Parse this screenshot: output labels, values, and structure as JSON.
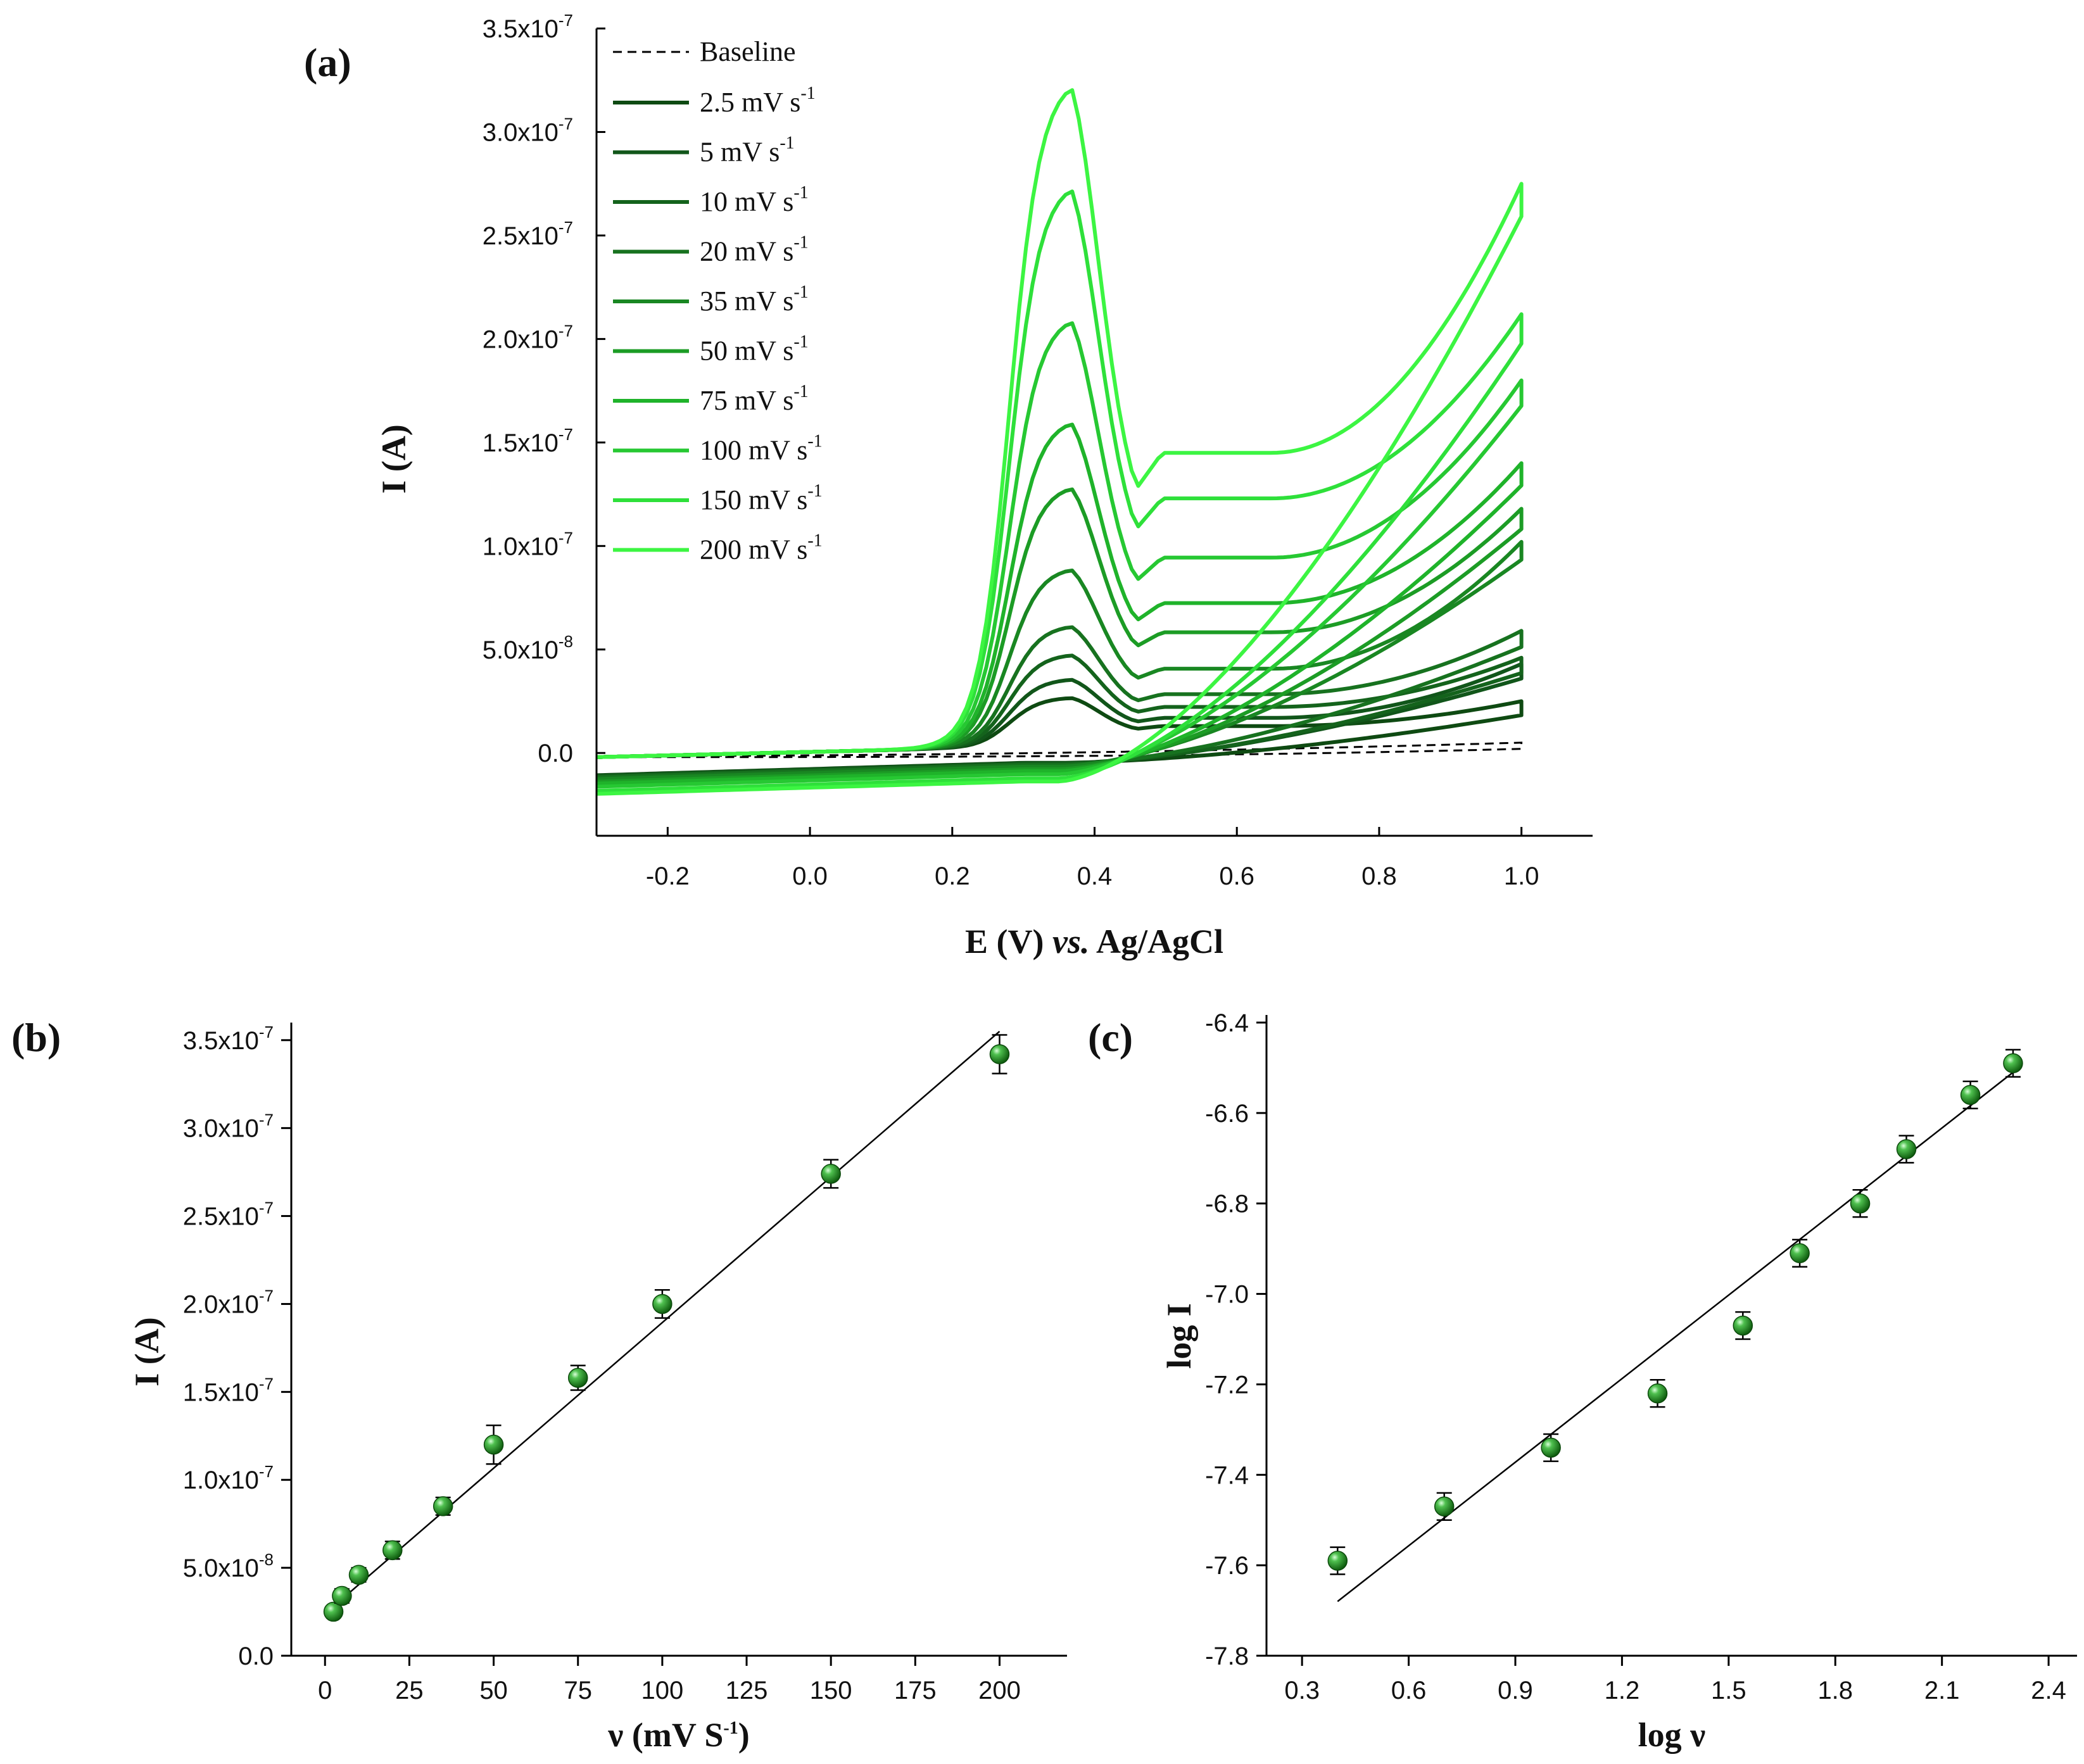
{
  "chart_data": [
    {
      "panel": "(a)",
      "type": "line",
      "xlabel_parts": [
        "E (V) ",
        "vs.",
        " Ag/AgCl"
      ],
      "ylabel": "I (A)",
      "xlim": [
        -0.3,
        1.1
      ],
      "ylim": [
        -4e-08,
        3.5e-07
      ],
      "x_ticks": [
        -0.2,
        0.0,
        0.2,
        0.4,
        0.6,
        0.8,
        1.0
      ],
      "x_tick_labels": [
        "-0.2",
        "0.0",
        "0.2",
        "0.4",
        "0.6",
        "0.8",
        "1.0"
      ],
      "y_ticks": [
        0,
        5e-08,
        1e-07,
        1.5e-07,
        2e-07,
        2.5e-07,
        3e-07,
        3.5e-07
      ],
      "y_tick_labels": [
        {
          "mant": "0.0",
          "exp": ""
        },
        {
          "mant": "5.0x10",
          "exp": "-8"
        },
        {
          "mant": "1.0x10",
          "exp": "-7"
        },
        {
          "mant": "1.5x10",
          "exp": "-7"
        },
        {
          "mant": "2.0x10",
          "exp": "-7"
        },
        {
          "mant": "2.5x10",
          "exp": "-7"
        },
        {
          "mant": "3.0x10",
          "exp": "-7"
        },
        {
          "mant": "3.5x10",
          "exp": "-7"
        }
      ],
      "baseline": {
        "name": "Baseline",
        "peak": 0,
        "end_current": 5e-09,
        "color": "#000000"
      },
      "series": [
        {
          "label": "2.5 mV s",
          "sup": "-1",
          "peak": 2.5e-08,
          "end_current": 2.3e-08,
          "color": "#0e4a12"
        },
        {
          "label": "5 mV s",
          "sup": "-1",
          "peak": 3.4e-08,
          "end_current": 4.1e-08,
          "color": "#11561a"
        },
        {
          "label": "10 mV s",
          "sup": "-1",
          "peak": 4.6e-08,
          "end_current": 4.4e-08,
          "color": "#14631c"
        },
        {
          "label": "20 mV s",
          "sup": "-1",
          "peak": 6e-08,
          "end_current": 5.7e-08,
          "color": "#17721f"
        },
        {
          "label": "35 mV s",
          "sup": "-1",
          "peak": 8.8e-08,
          "end_current": 1e-07,
          "color": "#198722"
        },
        {
          "label": "50 mV s",
          "sup": "-1",
          "peak": 1.28e-07,
          "end_current": 1.16e-07,
          "color": "#1c9c25"
        },
        {
          "label": "75 mV s",
          "sup": "-1",
          "peak": 1.6e-07,
          "end_current": 1.38e-07,
          "color": "#1fb32a"
        },
        {
          "label": "100 mV s",
          "sup": "-1",
          "peak": 2.1e-07,
          "end_current": 1.78e-07,
          "color": "#26c832"
        },
        {
          "label": "150 mV s",
          "sup": "-1",
          "peak": 2.75e-07,
          "end_current": 2.1e-07,
          "color": "#2ee03a"
        },
        {
          "label": "200 mV s",
          "sup": "-1",
          "peak": 3.25e-07,
          "end_current": 2.73e-07,
          "color": "#3cf542"
        }
      ],
      "peak_potential_V": 0.36
    },
    {
      "panel": "(b)",
      "type": "scatter",
      "xlabel": "ν (mV S",
      "xlabel_sup": "-1",
      "xlabel_end": ")",
      "ylabel": "I (A)",
      "xlim": [
        -10,
        220
      ],
      "ylim": [
        0,
        3.6e-07
      ],
      "x_ticks": [
        0,
        25,
        50,
        75,
        100,
        125,
        150,
        175,
        200
      ],
      "x_tick_labels": [
        "0",
        "25",
        "50",
        "75",
        "100",
        "125",
        "150",
        "175",
        "200"
      ],
      "y_ticks": [
        0,
        5e-08,
        1e-07,
        1.5e-07,
        2e-07,
        2.5e-07,
        3e-07,
        3.5e-07
      ],
      "y_tick_labels": [
        {
          "mant": "0.0",
          "exp": ""
        },
        {
          "mant": "5.0x10",
          "exp": "-8"
        },
        {
          "mant": "1.0x10",
          "exp": "-7"
        },
        {
          "mant": "1.5x10",
          "exp": "-7"
        },
        {
          "mant": "2.0x10",
          "exp": "-7"
        },
        {
          "mant": "2.5x10",
          "exp": "-7"
        },
        {
          "mant": "3.0x10",
          "exp": "-7"
        },
        {
          "mant": "3.5x10",
          "exp": "-7"
        }
      ],
      "x": [
        2.5,
        5,
        10,
        20,
        35,
        50,
        75,
        100,
        150,
        200
      ],
      "y": [
        2.5e-08,
        3.4e-08,
        4.6e-08,
        6e-08,
        8.5e-08,
        1.2e-07,
        1.58e-07,
        2e-07,
        2.74e-07,
        3.42e-07
      ],
      "yerr": [
        3e-09,
        4e-09,
        4e-09,
        5e-09,
        5e-09,
        1.1e-08,
        7e-09,
        8e-09,
        8e-09,
        1.1e-08
      ],
      "fit": {
        "x": [
          2.5,
          200
        ],
        "y": [
          2.8e-08,
          3.55e-07
        ]
      },
      "marker_color": "#1e8c1e"
    },
    {
      "panel": "(c)",
      "type": "scatter",
      "xlabel": "log ν",
      "ylabel": "log I",
      "xlim": [
        0.2,
        2.48
      ],
      "ylim": [
        -7.8,
        -6.4
      ],
      "x_ticks": [
        0.3,
        0.6,
        0.9,
        1.2,
        1.5,
        1.8,
        2.1,
        2.4
      ],
      "x_tick_labels": [
        "0.3",
        "0.6",
        "0.9",
        "1.2",
        "1.5",
        "1.8",
        "2.1",
        "2.4"
      ],
      "y_ticks": [
        -7.8,
        -7.6,
        -7.4,
        -7.2,
        -7.0,
        -6.8,
        -6.6,
        -6.4
      ],
      "y_tick_labels": [
        "-7.8",
        "-7.6",
        "-7.4",
        "-7.2",
        "-7.0",
        "-6.8",
        "-6.6",
        "-6.4"
      ],
      "x": [
        0.4,
        0.7,
        1.0,
        1.3,
        1.54,
        1.7,
        1.87,
        2.0,
        2.18,
        2.3
      ],
      "y": [
        -7.59,
        -7.47,
        -7.34,
        -7.22,
        -7.07,
        -6.91,
        -6.8,
        -6.68,
        -6.56,
        -6.49
      ],
      "yerr": [
        0.03,
        0.03,
        0.03,
        0.03,
        0.03,
        0.03,
        0.03,
        0.03,
        0.03,
        0.03
      ],
      "fit": {
        "x": [
          0.4,
          2.3
        ],
        "y": [
          -7.68,
          -6.51
        ]
      },
      "marker_color": "#1e8c1e"
    }
  ]
}
